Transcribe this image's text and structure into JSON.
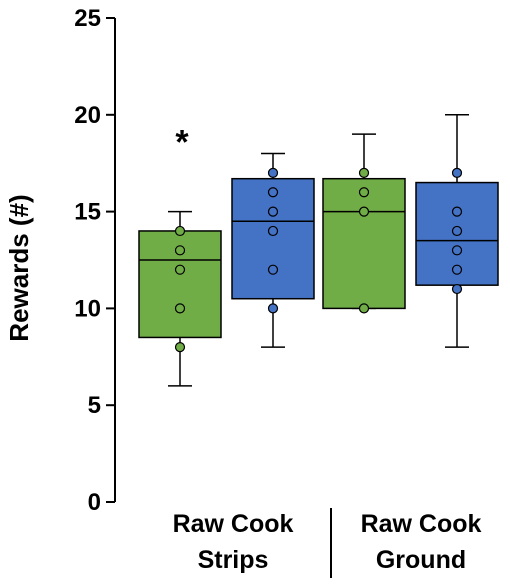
{
  "chart_data": {
    "type": "box",
    "ylabel": "Rewards (#)",
    "ylim": [
      0,
      25
    ],
    "yticks": [
      0,
      5,
      10,
      15,
      20,
      25
    ],
    "grid": false,
    "group_labels": [
      {
        "line1": "Raw Cook",
        "line2": "Strips"
      },
      {
        "line1": "Raw Cook",
        "line2": "Ground"
      }
    ],
    "boxes": [
      {
        "group": "Strips",
        "method": "Raw",
        "color": "#70ad47",
        "whisker_low": 6,
        "q1": 8.5,
        "median": 12.5,
        "q3": 14,
        "whisker_high": 15,
        "points": [
          8,
          10,
          12,
          13,
          14
        ],
        "annotation": "*"
      },
      {
        "group": "Strips",
        "method": "Cook",
        "color": "#4472c4",
        "whisker_low": 8,
        "q1": 10.5,
        "median": 14.5,
        "q3": 16.7,
        "whisker_high": 18,
        "points": [
          10,
          12,
          14,
          15,
          16,
          17
        ],
        "annotation": ""
      },
      {
        "group": "Ground",
        "method": "Raw",
        "color": "#70ad47",
        "whisker_low": 10,
        "q1": 10,
        "median": 15,
        "q3": 16.7,
        "whisker_high": 19,
        "points": [
          10,
          15,
          16,
          17
        ],
        "annotation": ""
      },
      {
        "group": "Ground",
        "method": "Cook",
        "color": "#4472c4",
        "whisker_low": 8,
        "q1": 11.2,
        "median": 13.5,
        "q3": 16.5,
        "whisker_high": 20,
        "points": [
          11,
          12,
          13,
          14,
          15,
          17
        ],
        "annotation": ""
      }
    ]
  }
}
